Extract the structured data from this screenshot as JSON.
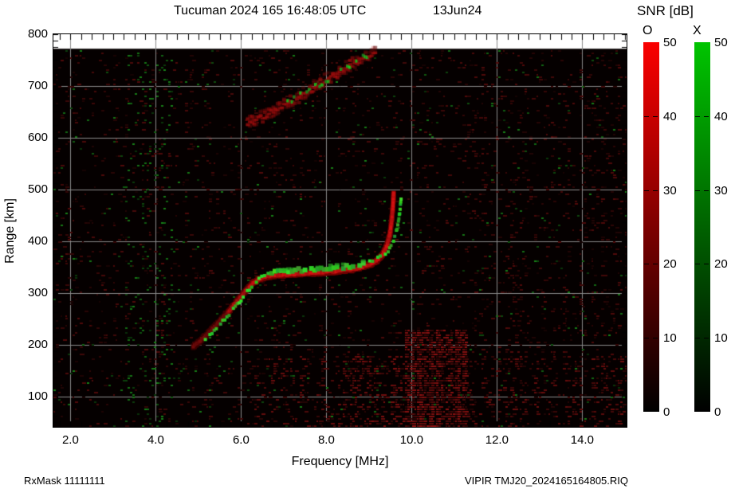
{
  "title": {
    "station_time": "Tucuman 2024 165 16:48:05 UTC",
    "date": "13Jun24"
  },
  "y_axis": {
    "label": "Range [km]",
    "ticks": [
      {
        "label": "800",
        "value": 800
      },
      {
        "label": "700",
        "value": 700
      },
      {
        "label": "600",
        "value": 600
      },
      {
        "label": "500",
        "value": 500
      },
      {
        "label": "400",
        "value": 400
      },
      {
        "label": "300",
        "value": 300
      },
      {
        "label": "200",
        "value": 200
      },
      {
        "label": "100",
        "value": 100
      }
    ]
  },
  "x_axis": {
    "label": "Frequency [MHz]",
    "ticks": [
      {
        "label": "2.0",
        "value": 2
      },
      {
        "label": "4.0",
        "value": 4
      },
      {
        "label": "6.0",
        "value": 6
      },
      {
        "label": "8.0",
        "value": 8
      },
      {
        "label": "10.0",
        "value": 10
      },
      {
        "label": "12.0",
        "value": 12
      },
      {
        "label": "14.0",
        "value": 14
      }
    ]
  },
  "colorbar": {
    "title": "SNR [dB]",
    "o_mode": {
      "label": "O",
      "top_color": "#fa0000"
    },
    "x_mode": {
      "label": "X",
      "top_color": "#00c400"
    },
    "min_db": 0,
    "max_db": 50,
    "ticks": [
      {
        "label": "50",
        "value": 50
      },
      {
        "label": "40",
        "value": 40
      },
      {
        "label": "30",
        "value": 30
      },
      {
        "label": "20",
        "value": 20
      },
      {
        "label": "10",
        "value": 10
      },
      {
        "label": "0",
        "value": 0
      }
    ]
  },
  "footer": {
    "left": "RxMask 11111111",
    "right": "VIPIR  TMJ20_2024165164805.RIQ"
  },
  "chart_data": {
    "type": "heatmap",
    "title": "Tucuman 2024 165 16:48:05 UTC 13Jun24",
    "xlabel": "Frequency [MHz]",
    "ylabel": "Range [km]",
    "xlim": [
      1.6,
      15.04
    ],
    "ylim": [
      41.5,
      800
    ],
    "data_top_range_km": 772,
    "x_tick_values": [
      2,
      4,
      6,
      8,
      10,
      12,
      14
    ],
    "x_minor_tick_step_mhz": 0.25,
    "y_tick_values": [
      100,
      200,
      300,
      400,
      500,
      600,
      700,
      800
    ],
    "y_minor_tick_step_km": 12.5,
    "grid_color": "#8a8a8a",
    "background_color": "#050000",
    "snr_colorbar": {
      "min_db": 0,
      "max_db": 50,
      "o_mode_color": "red",
      "x_mode_color": "green"
    },
    "series": [
      {
        "name": "F-layer O-mode echo trace (red)",
        "mode": "O",
        "critical_frequency_mhz": 9.58,
        "points": [
          [
            4.88,
            198
          ],
          [
            5.05,
            210
          ],
          [
            5.25,
            226
          ],
          [
            5.45,
            243
          ],
          [
            5.65,
            261
          ],
          [
            5.85,
            280
          ],
          [
            6.0,
            295
          ],
          [
            6.15,
            310
          ],
          [
            6.28,
            321
          ],
          [
            6.42,
            329
          ],
          [
            6.6,
            333
          ],
          [
            6.85,
            336
          ],
          [
            7.1,
            337
          ],
          [
            7.4,
            339
          ],
          [
            7.7,
            340
          ],
          [
            8.0,
            342
          ],
          [
            8.3,
            344
          ],
          [
            8.6,
            347
          ],
          [
            8.85,
            352
          ],
          [
            9.05,
            358
          ],
          [
            9.2,
            366
          ],
          [
            9.32,
            377
          ],
          [
            9.42,
            393
          ],
          [
            9.49,
            415
          ],
          [
            9.53,
            440
          ],
          [
            9.56,
            468
          ],
          [
            9.58,
            497
          ]
        ]
      },
      {
        "name": "F-layer X-mode echo trace (green)",
        "mode": "X",
        "critical_frequency_mhz": 9.76,
        "points": [
          [
            5.05,
            203
          ],
          [
            5.22,
            216
          ],
          [
            5.42,
            232
          ],
          [
            5.62,
            250
          ],
          [
            5.82,
            268
          ],
          [
            6.0,
            286
          ],
          [
            6.15,
            302
          ],
          [
            6.3,
            316
          ],
          [
            6.42,
            326
          ],
          [
            6.55,
            334
          ],
          [
            6.72,
            339
          ],
          [
            6.95,
            342
          ],
          [
            7.2,
            344
          ],
          [
            7.5,
            345
          ],
          [
            7.8,
            347
          ],
          [
            8.1,
            348
          ],
          [
            8.4,
            350
          ],
          [
            8.7,
            353
          ],
          [
            8.95,
            358
          ],
          [
            9.15,
            364
          ],
          [
            9.32,
            372
          ],
          [
            9.45,
            382
          ],
          [
            9.55,
            396
          ],
          [
            9.63,
            415
          ],
          [
            9.69,
            438
          ],
          [
            9.73,
            462
          ],
          [
            9.76,
            488
          ]
        ]
      },
      {
        "name": "Second-hop diffuse trace (red with green patches)",
        "mode": "mixed",
        "points": [
          [
            6.15,
            628
          ],
          [
            6.45,
            640
          ],
          [
            6.75,
            653
          ],
          [
            7.05,
            666
          ],
          [
            7.35,
            680
          ],
          [
            7.65,
            696
          ],
          [
            7.95,
            711
          ],
          [
            8.25,
            726
          ],
          [
            8.55,
            740
          ],
          [
            8.82,
            752
          ],
          [
            9.05,
            762
          ],
          [
            9.18,
            769
          ]
        ]
      }
    ],
    "noise_bands": [
      {
        "kind": "green-speckle-column",
        "f_range_mhz": [
          3.25,
          4.35
        ]
      },
      {
        "kind": "strong-red-rfi-columns",
        "f_range_mhz": [
          9.8,
          11.3
        ],
        "below_range_km": 230
      },
      {
        "kind": "red-noise-floor",
        "f_range_mhz": [
          6.3,
          9.8
        ],
        "below_range_km": 180
      },
      {
        "kind": "sparse-red-speckle",
        "f_range_mhz": [
          1.6,
          15.04
        ]
      }
    ]
  }
}
